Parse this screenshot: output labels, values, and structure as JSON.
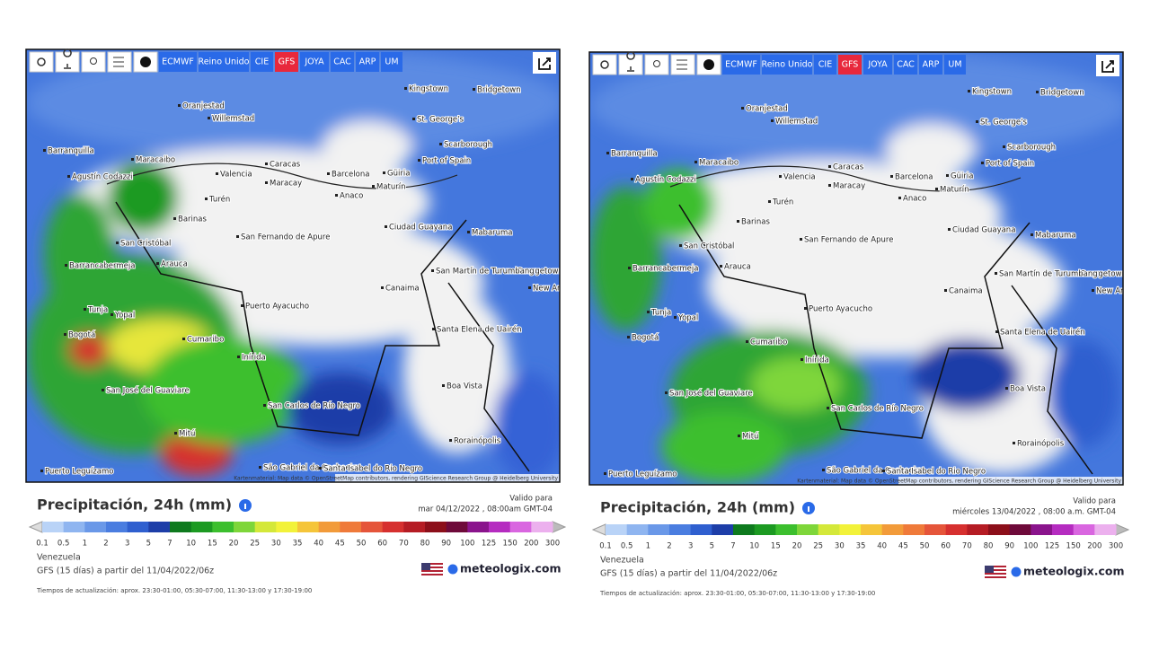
{
  "toolbar": [
    "ECMWF",
    "Reino Unido",
    "CIE",
    "GFS",
    "JOYA",
    "CAC",
    "ARP",
    "UM"
  ],
  "map_labels": [
    "Oranjestad",
    "Willemstad",
    "Kingstown",
    "Bridgetown",
    "St. George's",
    "Scarborough",
    "Port of Spain",
    "Barranquilla",
    "Maracaibo",
    "Agustín Codazzi",
    "Caracas",
    "Valencia",
    "Maracay",
    "Barcelona",
    "Güiria",
    "Maturín",
    "Anaco",
    "Turén",
    "Barinas",
    "San Fernando de Apure",
    "Ciudad Guayana",
    "Mabaruma",
    "San Cristóbal",
    "Barrancabermeja",
    "Arauca",
    "Georgetown",
    "San Martín de Turumbang",
    "New Amsterdam",
    "Canaima",
    "Puerto Ayacucho",
    "Tunja",
    "Yopal",
    "Santa Elena de Uairén",
    "Bogotá",
    "Cumaribo",
    "Inírida",
    "Boa Vista",
    "San José del Guaviare",
    "San Carlos de Río Negro",
    "Mitú",
    "Rorainópolis",
    "São Gabriel da Cachoeira",
    "Santa Isabel do Rio Negro",
    "Puerto Leguízamo"
  ],
  "attribution": "Kartenmaterial: Map data © OpenStreetMap contributors, rendering GIScience Research Group @ Heidelberg University",
  "title": "Precipitación, 24h (mm)",
  "valid_label": "Valido para",
  "panels": [
    {
      "valid_date": "mar 04/12/2022 , 08:00am GMT-04"
    },
    {
      "valid_date": "miércoles 13/04/2022 , 08:00 a.m. GMT-04"
    }
  ],
  "legend": [
    0.1,
    0.5,
    1,
    2,
    3,
    5,
    7,
    10,
    15,
    20,
    25,
    30,
    35,
    40,
    45,
    50,
    60,
    70,
    80,
    90,
    100,
    125,
    150,
    200,
    300
  ],
  "region": "Venezuela",
  "model_line": "GFS (15 días) a partir del 11/04/2022/06z",
  "brand": "meteologix.com",
  "update_times": "Tiempos de actualización: aprox. 23:30-01:00, 05:30-07:00, 11:30-13:00 y 17:30-19:00"
}
